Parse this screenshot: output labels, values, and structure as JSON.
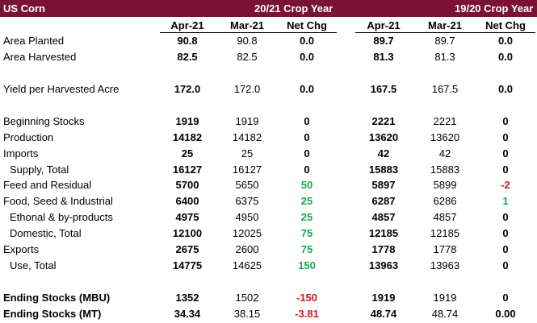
{
  "header": {
    "title": "US Corn",
    "group1": "20/21 Crop Year",
    "group2": "19/20 Crop Year"
  },
  "columns": [
    "Apr-21",
    "Mar-21",
    "Net Chg",
    "Apr-21",
    "Mar-21",
    "Net Chg"
  ],
  "rows": [
    {
      "label": "Area Planted",
      "vals": [
        "90.8",
        "90.8",
        "0.0",
        "89.7",
        "89.7",
        "0.0"
      ],
      "colors": [
        "",
        "",
        "",
        "",
        "",
        ""
      ]
    },
    {
      "label": "Area Harvested",
      "vals": [
        "82.5",
        "82.5",
        "0.0",
        "81.3",
        "81.3",
        "0.0"
      ],
      "colors": [
        "",
        "",
        "",
        "",
        "",
        ""
      ]
    },
    {
      "label": "Yield per Harvested Acre",
      "vals": [
        "172.0",
        "172.0",
        "0.0",
        "167.5",
        "167.5",
        "0.0"
      ],
      "colors": [
        "",
        "",
        "",
        "",
        "",
        ""
      ]
    },
    {
      "label": "Beginning Stocks",
      "vals": [
        "1919",
        "1919",
        "0",
        "2221",
        "2221",
        "0"
      ],
      "colors": [
        "",
        "",
        "",
        "",
        "",
        ""
      ]
    },
    {
      "label": "Production",
      "vals": [
        "14182",
        "14182",
        "0",
        "13620",
        "13620",
        "0"
      ],
      "colors": [
        "",
        "",
        "",
        "",
        "",
        ""
      ]
    },
    {
      "label": "Imports",
      "vals": [
        "25",
        "25",
        "0",
        "42",
        "42",
        "0"
      ],
      "colors": [
        "",
        "",
        "",
        "",
        "",
        ""
      ]
    },
    {
      "label": "Supply, Total",
      "indent": true,
      "vals": [
        "16127",
        "16127",
        "0",
        "15883",
        "15883",
        "0"
      ],
      "colors": [
        "",
        "",
        "",
        "",
        "",
        ""
      ]
    },
    {
      "label": "Feed and Residual",
      "vals": [
        "5700",
        "5650",
        "50",
        "5897",
        "5899",
        "-2"
      ],
      "colors": [
        "",
        "",
        "green",
        "",
        "",
        "red"
      ]
    },
    {
      "label": "Food, Seed & Industrial",
      "vals": [
        "6400",
        "6375",
        "25",
        "6287",
        "6286",
        "1"
      ],
      "colors": [
        "",
        "",
        "green",
        "",
        "",
        "green"
      ]
    },
    {
      "label": "Ethonal & by-products",
      "indent": true,
      "vals": [
        "4975",
        "4950",
        "25",
        "4857",
        "4857",
        "0"
      ],
      "colors": [
        "",
        "",
        "green",
        "",
        "",
        ""
      ]
    },
    {
      "label": "Domestic, Total",
      "indent": true,
      "vals": [
        "12100",
        "12025",
        "75",
        "12185",
        "12185",
        "0"
      ],
      "colors": [
        "",
        "",
        "green",
        "",
        "",
        ""
      ]
    },
    {
      "label": "Exports",
      "vals": [
        "2675",
        "2600",
        "75",
        "1778",
        "1778",
        "0"
      ],
      "colors": [
        "",
        "",
        "green",
        "",
        "",
        ""
      ]
    },
    {
      "label": "Use, Total",
      "indent": true,
      "vals": [
        "14775",
        "14625",
        "150",
        "13963",
        "13963",
        "0"
      ],
      "colors": [
        "",
        "",
        "green",
        "",
        "",
        ""
      ]
    },
    {
      "label": "Ending Stocks (MBU)",
      "bold": true,
      "vals": [
        "1352",
        "1502",
        "-150",
        "1919",
        "1919",
        "0"
      ],
      "colors": [
        "",
        "",
        "red",
        "",
        "",
        ""
      ]
    },
    {
      "label": "Ending Stocks (MT)",
      "bold": true,
      "vals": [
        "34.34",
        "38.15",
        "-3.81",
        "48.74",
        "48.74",
        "0.00"
      ],
      "colors": [
        "",
        "",
        "red",
        "",
        "",
        ""
      ]
    }
  ],
  "colors": {
    "header_bg": "#7a1236",
    "positive": "#1aa84a",
    "negative": "#e0141e"
  }
}
